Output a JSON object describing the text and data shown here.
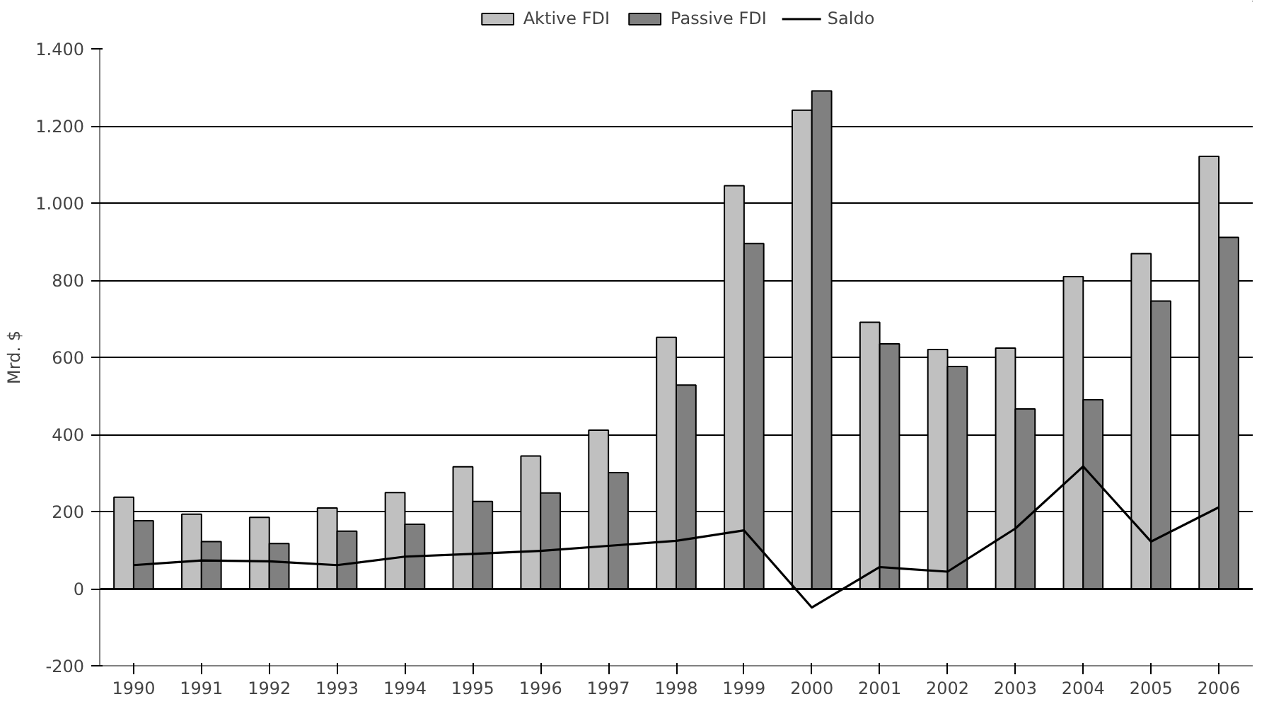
{
  "chart_data": {
    "type": "bar",
    "ylabel": "Mrd. $",
    "categories": [
      "1990",
      "1991",
      "1992",
      "1993",
      "1994",
      "1995",
      "1996",
      "1997",
      "1998",
      "1999",
      "2000",
      "2001",
      "2002",
      "2003",
      "2004",
      "2005",
      "2006"
    ],
    "series": [
      {
        "name": "Aktive FDI",
        "color": "#c0c0c0",
        "values": [
          237,
          193,
          185,
          209,
          249,
          316,
          344,
          411,
          652,
          1045,
          1241,
          691,
          620,
          624,
          809,
          869,
          1121
        ]
      },
      {
        "name": "Passive FDI",
        "color": "#808080",
        "values": [
          176,
          122,
          117,
          149,
          167,
          226,
          248,
          301,
          528,
          895,
          1291,
          635,
          576,
          466,
          490,
          746,
          911
        ]
      },
      {
        "name": "Saldo",
        "type": "line",
        "color": "#000000",
        "values": [
          61,
          73,
          71,
          61,
          83,
          90,
          98,
          111,
          124,
          151,
          -49,
          56,
          44,
          156,
          317,
          122,
          211
        ]
      }
    ],
    "ylim": [
      -200,
      1400
    ],
    "yticks": [
      -200,
      0,
      200,
      400,
      600,
      800,
      {
        "value": 1000,
        "label": "1.000"
      },
      {
        "value": 1200,
        "label": "1.200"
      },
      {
        "value": 1400,
        "label": "1.400"
      }
    ],
    "grid": "y",
    "legend": "top",
    "marker": "none"
  }
}
